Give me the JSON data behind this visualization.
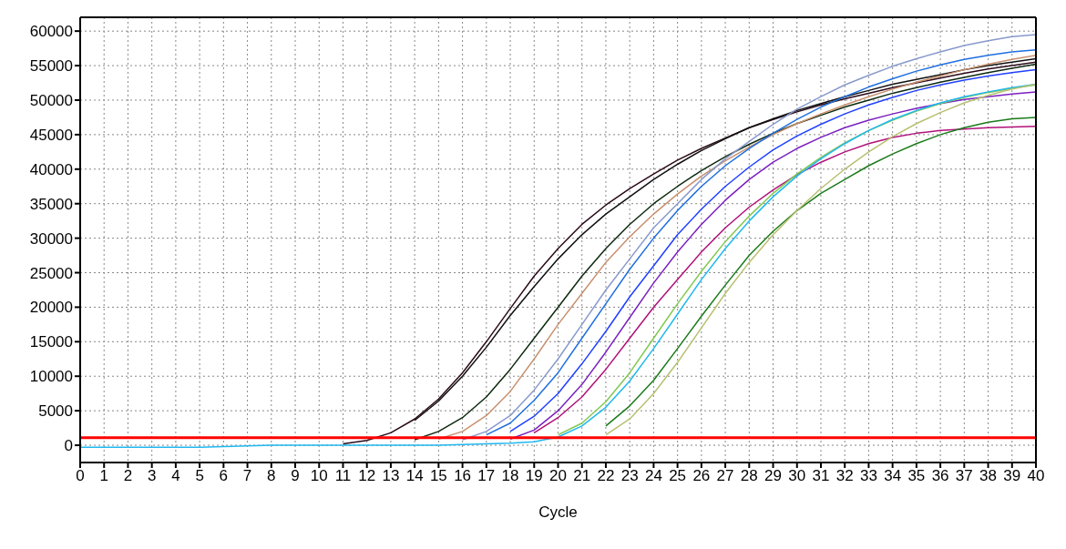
{
  "chart_data": {
    "type": "line",
    "xlabel": "Cycle",
    "x": [
      0,
      1,
      2,
      3,
      4,
      5,
      6,
      7,
      8,
      9,
      10,
      11,
      12,
      13,
      14,
      15,
      16,
      17,
      18,
      19,
      20,
      21,
      22,
      23,
      24,
      25,
      26,
      27,
      28,
      29,
      30,
      31,
      32,
      33,
      34,
      35,
      36,
      37,
      38,
      39,
      40
    ],
    "xlim": [
      0,
      40
    ],
    "xticks": [
      0,
      1,
      2,
      3,
      4,
      5,
      6,
      7,
      8,
      9,
      10,
      11,
      12,
      13,
      14,
      15,
      16,
      17,
      18,
      19,
      20,
      21,
      22,
      23,
      24,
      25,
      26,
      27,
      28,
      29,
      30,
      31,
      32,
      33,
      34,
      35,
      36,
      37,
      38,
      39,
      40
    ],
    "ylim": [
      -2500,
      62000
    ],
    "yticks": [
      0,
      5000,
      10000,
      15000,
      20000,
      25000,
      30000,
      35000,
      40000,
      45000,
      50000,
      55000,
      60000
    ],
    "grid": true,
    "line_style": "solid",
    "ref_lines": [
      {
        "axis": "y",
        "value": 1100,
        "color": "#ff0000"
      }
    ],
    "series": [
      {
        "color": "#2b0a1a",
        "values": [
          null,
          null,
          null,
          null,
          null,
          null,
          null,
          null,
          null,
          null,
          null,
          200,
          700,
          1800,
          3800,
          6700,
          10500,
          15000,
          19800,
          24500,
          28500,
          32000,
          34800,
          37200,
          39300,
          41300,
          43000,
          44500,
          46000,
          47200,
          48300,
          49300,
          50200,
          51000,
          51800,
          52500,
          53200,
          53900,
          54500,
          55000,
          55500
        ]
      },
      {
        "color": "#101010",
        "values": [
          null,
          null,
          null,
          null,
          null,
          null,
          null,
          null,
          null,
          null,
          null,
          null,
          null,
          null,
          3600,
          6400,
          10000,
          14200,
          18800,
          23000,
          27000,
          30500,
          33500,
          36000,
          38500,
          40700,
          42700,
          44400,
          46000,
          47300,
          48500,
          49500,
          50500,
          51400,
          52300,
          53000,
          53700,
          54400,
          55000,
          55500,
          56000
        ]
      },
      {
        "color": "#0d2a10",
        "values": [
          null,
          null,
          null,
          null,
          null,
          null,
          null,
          null,
          null,
          null,
          null,
          null,
          null,
          null,
          800,
          2000,
          4000,
          7000,
          11000,
          15500,
          20000,
          24500,
          28500,
          32000,
          35000,
          37500,
          39800,
          41800,
          43600,
          45200,
          46600,
          47800,
          49000,
          50000,
          51000,
          51800,
          52600,
          53300,
          54000,
          54600,
          55200
        ]
      },
      {
        "color": "#c8906e",
        "values": [
          null,
          null,
          null,
          null,
          null,
          null,
          null,
          null,
          null,
          null,
          null,
          null,
          null,
          null,
          null,
          900,
          2000,
          4300,
          7800,
          12500,
          17500,
          22000,
          26500,
          30200,
          33500,
          36400,
          39000,
          41200,
          43200,
          45000,
          46600,
          48000,
          49300,
          50500,
          51600,
          52600,
          53500,
          54400,
          55200,
          55900,
          56500
        ]
      },
      {
        "color": "#8899cc",
        "values": [
          null,
          null,
          null,
          null,
          null,
          null,
          null,
          null,
          null,
          null,
          null,
          null,
          null,
          null,
          null,
          null,
          800,
          2000,
          4300,
          8000,
          12500,
          17500,
          22500,
          27000,
          31500,
          35000,
          38500,
          41500,
          44000,
          46500,
          48700,
          50500,
          52200,
          53600,
          54900,
          56000,
          57000,
          57900,
          58600,
          59200,
          59500
        ]
      },
      {
        "color": "#1e6fe0",
        "values": [
          null,
          null,
          null,
          null,
          null,
          null,
          null,
          null,
          null,
          null,
          null,
          null,
          null,
          null,
          null,
          null,
          null,
          1500,
          3200,
          6500,
          10500,
          15500,
          20500,
          25500,
          30000,
          34000,
          37500,
          40500,
          43000,
          45200,
          47200,
          49000,
          50500,
          51900,
          53100,
          54200,
          55100,
          55900,
          56500,
          57000,
          57300
        ]
      },
      {
        "color": "#2040ff",
        "values": [
          null,
          null,
          null,
          null,
          null,
          null,
          null,
          null,
          null,
          null,
          null,
          null,
          null,
          null,
          null,
          null,
          null,
          null,
          2000,
          4200,
          7500,
          11800,
          16500,
          21500,
          26000,
          30500,
          34200,
          37500,
          40300,
          42800,
          44800,
          46500,
          48000,
          49300,
          50400,
          51400,
          52200,
          52900,
          53500,
          54000,
          54400
        ]
      },
      {
        "color": "#7a20c0",
        "values": [
          null,
          null,
          null,
          null,
          null,
          null,
          null,
          null,
          null,
          null,
          null,
          null,
          null,
          null,
          null,
          null,
          null,
          null,
          900,
          2200,
          5000,
          8800,
          13500,
          18500,
          23500,
          28000,
          32000,
          35500,
          38500,
          41000,
          43000,
          44600,
          46000,
          47100,
          48000,
          48800,
          49500,
          50100,
          50500,
          50900,
          51200
        ]
      },
      {
        "color": "#b0107a",
        "values": [
          null,
          null,
          null,
          null,
          null,
          null,
          null,
          null,
          null,
          null,
          null,
          null,
          null,
          null,
          null,
          null,
          null,
          null,
          null,
          1800,
          4000,
          7000,
          11000,
          15500,
          20000,
          24000,
          28000,
          31500,
          34500,
          37000,
          39200,
          41000,
          42500,
          43700,
          44600,
          45200,
          45600,
          45800,
          46000,
          46100,
          46200
        ]
      },
      {
        "color": "#80c850",
        "values": [
          null,
          null,
          null,
          null,
          null,
          null,
          null,
          null,
          null,
          null,
          null,
          null,
          null,
          null,
          null,
          null,
          null,
          null,
          null,
          null,
          1500,
          3200,
          6300,
          10500,
          15500,
          20500,
          25200,
          29500,
          33200,
          36500,
          39300,
          41700,
          43800,
          45600,
          47100,
          48400,
          49500,
          50400,
          51100,
          51700,
          52200
        ]
      },
      {
        "color": "#20b8f0",
        "values": [
          -300,
          -300,
          -300,
          -300,
          -300,
          -300,
          -200,
          -100,
          0,
          0,
          0,
          0,
          0,
          0,
          0,
          0,
          100,
          200,
          300,
          500,
          1200,
          2800,
          5500,
          9300,
          14000,
          19000,
          24000,
          28500,
          32500,
          36000,
          39000,
          41500,
          43700,
          45600,
          47200,
          48500,
          49600,
          50500,
          51200,
          51800,
          52300
        ]
      },
      {
        "color": "#1a7a1a",
        "values": [
          null,
          null,
          null,
          null,
          null,
          null,
          null,
          null,
          null,
          null,
          null,
          null,
          null,
          null,
          null,
          null,
          null,
          null,
          null,
          null,
          null,
          null,
          2800,
          5700,
          9400,
          14000,
          18700,
          23200,
          27500,
          31000,
          34000,
          36500,
          38500,
          40500,
          42200,
          43700,
          45000,
          46000,
          46800,
          47300,
          47500
        ]
      },
      {
        "color": "#b8c070",
        "values": [
          null,
          null,
          null,
          null,
          null,
          null,
          null,
          null,
          null,
          null,
          null,
          null,
          null,
          null,
          null,
          null,
          null,
          null,
          null,
          null,
          null,
          null,
          1500,
          3800,
          7500,
          12000,
          17000,
          22000,
          26500,
          30500,
          34000,
          37200,
          40000,
          42500,
          44700,
          46600,
          48200,
          49600,
          50700,
          51600,
          52300
        ]
      }
    ]
  }
}
